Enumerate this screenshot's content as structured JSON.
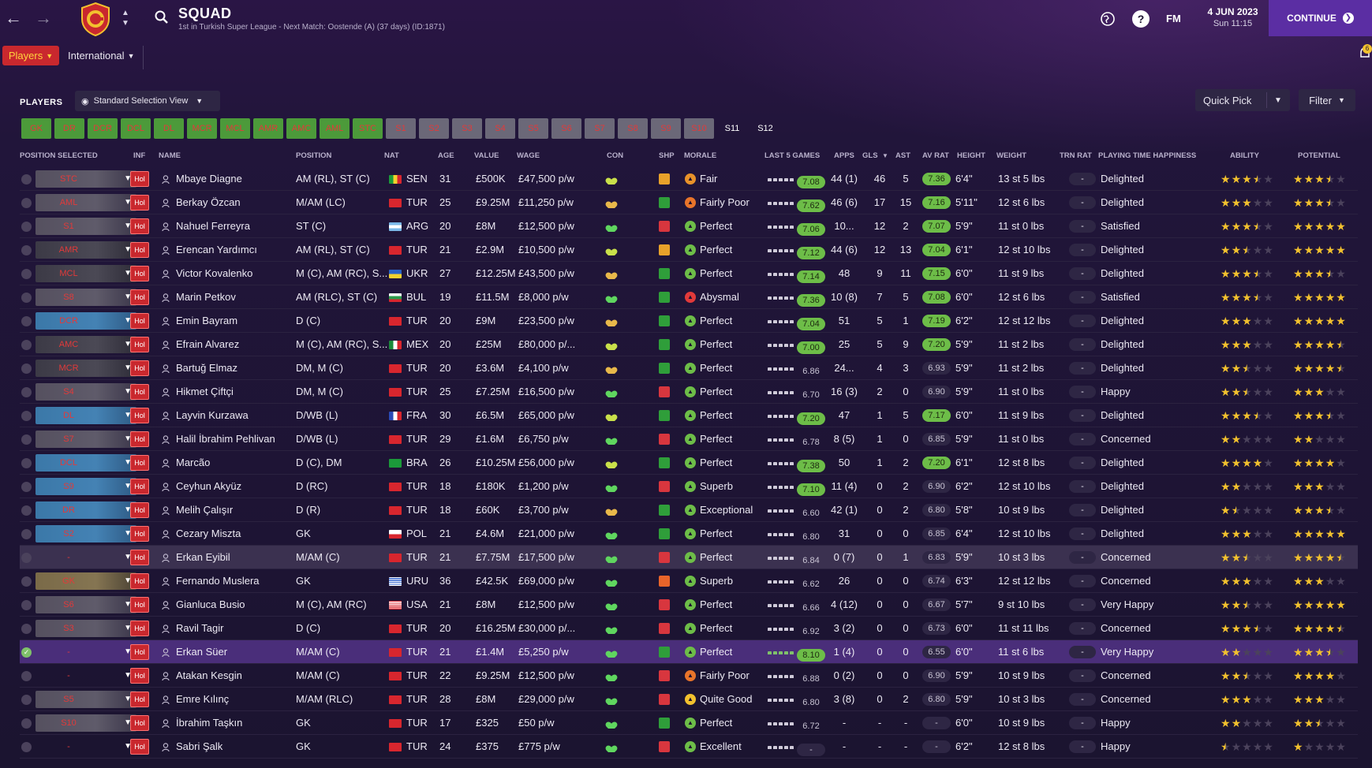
{
  "header": {
    "title": "SQUAD",
    "subtitle": "1st in Turkish Super League - Next Match: Oostende (A) (37 days) (ID:1871)",
    "fm_label": "FM",
    "date_line1": "4 JUN 2023",
    "date_line2": "Sun 11:15",
    "continue_label": "CONTINUE",
    "help_label": "?"
  },
  "subnav": {
    "players_label": "Players",
    "international_label": "International",
    "notif_count": "6"
  },
  "panel": {
    "players_label": "PLAYERS",
    "view_label": "Standard Selection View",
    "quickpick_label": "Quick Pick",
    "filter_label": "Filter"
  },
  "chips": [
    "GK",
    "DR",
    "DCR",
    "DCL",
    "DL",
    "MCR",
    "MCL",
    "AMR",
    "AMC",
    "AML",
    "STC",
    "S1",
    "S2",
    "S3",
    "S4",
    "S5",
    "S6",
    "S7",
    "S8",
    "S9",
    "S10",
    "S11",
    "S12"
  ],
  "columns": {
    "position_selected": "POSITION SELECTED",
    "inf": "INF",
    "name": "NAME",
    "position": "POSITION",
    "nat": "NAT",
    "age": "AGE",
    "value": "VALUE",
    "wage": "WAGE",
    "con": "CON",
    "shp": "SHP",
    "morale": "MORALE",
    "last5": "LAST 5 GAMES",
    "apps": "APPS",
    "gls": "GLS",
    "ast": "AST",
    "avrat": "AV RAT",
    "height": "HEIGHT",
    "weight": "WEIGHT",
    "trn": "TRN RAT",
    "pth": "PLAYING TIME HAPPINESS",
    "ability": "ABILITY",
    "potential": "POTENTIAL"
  },
  "colors": {
    "accent_purple": "#5b2ea3",
    "red": "#c9282e",
    "green_rating": "#6dbd48",
    "star": "#f2c12e"
  },
  "players": [
    {
      "sel": "STC",
      "selType": "att",
      "inf": "Hol",
      "name": "Mbaye Diagne",
      "position": "AM (RL), ST (C)",
      "flag": "SEN",
      "nat": "SEN",
      "age": "31",
      "value": "£500K",
      "wage": "£47,500 p/w",
      "con": "yellow-heart",
      "shp": "orange",
      "morale": "Fair",
      "moraleColor": "#e8922a",
      "l5": "7.08",
      "l5c": "g",
      "apps": "44 (1)",
      "gls": "46",
      "ast": "5",
      "av": "7.36",
      "avc": "g",
      "height": "6'4\"",
      "weight": "13 st 5 lbs",
      "trn": "-",
      "pth": "Delighted",
      "ab": 3.5,
      "pot": 3.5,
      "row": ""
    },
    {
      "sel": "AML",
      "selType": "att",
      "inf": "Hol",
      "name": "Berkay Özcan",
      "position": "M/AM (LC)",
      "flag": "TUR",
      "nat": "TUR",
      "age": "25",
      "value": "£9.25M",
      "wage": "£11,250 p/w",
      "con": "gold-heart",
      "shp": "green",
      "morale": "Fairly Poor",
      "moraleColor": "#e8742a",
      "l5": "7.62",
      "l5c": "g",
      "apps": "46 (6)",
      "gls": "17",
      "ast": "15",
      "av": "7.16",
      "avc": "g",
      "height": "5'11\"",
      "weight": "12 st 6 lbs",
      "trn": "-",
      "pth": "Delighted",
      "ab": 3,
      "pot": 3.5,
      "row": ""
    },
    {
      "sel": "S1",
      "selType": "att",
      "inf": "Hol",
      "name": "Nahuel Ferreyra",
      "position": "ST (C)",
      "flag": "ARG",
      "nat": "ARG",
      "age": "20",
      "value": "£8M",
      "wage": "£12,500 p/w",
      "con": "green-heart",
      "shp": "red",
      "morale": "Perfect",
      "moraleColor": "#6dbd48",
      "l5": "7.06",
      "l5c": "g",
      "apps": "10...",
      "gls": "12",
      "ast": "2",
      "av": "7.07",
      "avc": "g",
      "height": "5'9\"",
      "weight": "11 st 0 lbs",
      "trn": "-",
      "pth": "Satisfied",
      "ab": 3.5,
      "pot": 5,
      "row": ""
    },
    {
      "sel": "AMR",
      "selType": "mid",
      "inf": "Hol",
      "name": "Erencan Yardımcı",
      "position": "AM (RL), ST (C)",
      "flag": "TUR",
      "nat": "TUR",
      "age": "21",
      "value": "£2.9M",
      "wage": "£10,500 p/w",
      "con": "yellow-heart",
      "shp": "orange",
      "morale": "Perfect",
      "moraleColor": "#6dbd48",
      "l5": "7.12",
      "l5c": "g",
      "apps": "44 (6)",
      "gls": "12",
      "ast": "13",
      "av": "7.04",
      "avc": "g",
      "height": "6'1\"",
      "weight": "12 st 10 lbs",
      "trn": "-",
      "pth": "Delighted",
      "ab": 2.5,
      "pot": 5,
      "row": ""
    },
    {
      "sel": "MCL",
      "selType": "mid",
      "inf": "Hol",
      "name": "Victor Kovalenko",
      "position": "M (C), AM (RC), S...",
      "flag": "UKR",
      "nat": "UKR",
      "age": "27",
      "value": "£12.25M",
      "wage": "£43,500 p/w",
      "con": "gold-heart",
      "shp": "green",
      "morale": "Perfect",
      "moraleColor": "#6dbd48",
      "l5": "7.14",
      "l5c": "g",
      "apps": "48",
      "gls": "9",
      "ast": "11",
      "av": "7.15",
      "avc": "g",
      "height": "6'0\"",
      "weight": "11 st 9 lbs",
      "trn": "-",
      "pth": "Delighted",
      "ab": 3.5,
      "pot": 3.5,
      "row": ""
    },
    {
      "sel": "S8",
      "selType": "att",
      "inf": "Hol",
      "name": "Marin Petkov",
      "position": "AM (RLC), ST (C)",
      "flag": "BUL",
      "nat": "BUL",
      "age": "19",
      "value": "£11.5M",
      "wage": "£8,000 p/w",
      "con": "green-heart",
      "shp": "green",
      "morale": "Abysmal",
      "moraleColor": "#e23a3a",
      "l5": "7.36",
      "l5c": "g",
      "apps": "10 (8)",
      "gls": "7",
      "ast": "5",
      "av": "7.08",
      "avc": "g",
      "height": "6'0\"",
      "weight": "12 st 6 lbs",
      "trn": "-",
      "pth": "Satisfied",
      "ab": 3.5,
      "pot": 5,
      "row": ""
    },
    {
      "sel": "DCR",
      "selType": "def",
      "inf": "Hol",
      "name": "Emin Bayram",
      "position": "D (C)",
      "flag": "TUR",
      "nat": "TUR",
      "age": "20",
      "value": "£9M",
      "wage": "£23,500 p/w",
      "con": "gold-heart",
      "shp": "green",
      "morale": "Perfect",
      "moraleColor": "#6dbd48",
      "l5": "7.04",
      "l5c": "g",
      "apps": "51",
      "gls": "5",
      "ast": "1",
      "av": "7.19",
      "avc": "g",
      "height": "6'2\"",
      "weight": "12 st 12 lbs",
      "trn": "-",
      "pth": "Delighted",
      "ab": 3,
      "pot": 5,
      "row": ""
    },
    {
      "sel": "AMC",
      "selType": "mid",
      "inf": "Hol",
      "name": "Efrain Alvarez",
      "position": "M (C), AM (RC), S...",
      "flag": "MEX",
      "nat": "MEX",
      "age": "20",
      "value": "£25M",
      "wage": "£80,000 p/...",
      "con": "yellow-heart",
      "shp": "green",
      "morale": "Perfect",
      "moraleColor": "#6dbd48",
      "l5": "7.00",
      "l5c": "g",
      "apps": "25",
      "gls": "5",
      "ast": "9",
      "av": "7.20",
      "avc": "g",
      "height": "5'9\"",
      "weight": "11 st 2 lbs",
      "trn": "-",
      "pth": "Delighted",
      "ab": 3,
      "pot": 4.5,
      "row": ""
    },
    {
      "sel": "MCR",
      "selType": "mid",
      "inf": "Hol",
      "name": "Bartuğ Elmaz",
      "position": "DM, M (C)",
      "flag": "TUR",
      "nat": "TUR",
      "age": "20",
      "value": "£3.6M",
      "wage": "£4,100 p/w",
      "con": "gold-heart",
      "shp": "green",
      "morale": "Perfect",
      "moraleColor": "#6dbd48",
      "l5": "6.86",
      "l5c": "n",
      "apps": "24...",
      "gls": "4",
      "ast": "3",
      "av": "6.93",
      "avc": "n",
      "height": "5'9\"",
      "weight": "11 st 2 lbs",
      "trn": "-",
      "pth": "Delighted",
      "ab": 2.5,
      "pot": 4.5,
      "row": ""
    },
    {
      "sel": "S4",
      "selType": "att",
      "inf": "Hol",
      "name": "Hikmet Çiftçi",
      "position": "DM, M (C)",
      "flag": "TUR",
      "nat": "TUR",
      "age": "25",
      "value": "£7.25M",
      "wage": "£16,500 p/w",
      "con": "green-heart",
      "shp": "red",
      "morale": "Perfect",
      "moraleColor": "#6dbd48",
      "l5": "6.70",
      "l5c": "n",
      "apps": "16 (3)",
      "gls": "2",
      "ast": "0",
      "av": "6.90",
      "avc": "n",
      "height": "5'9\"",
      "weight": "11 st 0 lbs",
      "trn": "-",
      "pth": "Happy",
      "ab": 2.5,
      "pot": 3,
      "row": ""
    },
    {
      "sel": "DL",
      "selType": "def",
      "inf": "Hol",
      "name": "Layvin Kurzawa",
      "position": "D/WB (L)",
      "flag": "FRA",
      "nat": "FRA",
      "age": "30",
      "value": "£6.5M",
      "wage": "£65,000 p/w",
      "con": "yellow-heart",
      "shp": "green",
      "morale": "Perfect",
      "moraleColor": "#6dbd48",
      "l5": "7.20",
      "l5c": "g",
      "apps": "47",
      "gls": "1",
      "ast": "5",
      "av": "7.17",
      "avc": "g",
      "height": "6'0\"",
      "weight": "11 st 9 lbs",
      "trn": "-",
      "pth": "Delighted",
      "ab": 3.5,
      "pot": 3.5,
      "row": ""
    },
    {
      "sel": "S7",
      "selType": "att",
      "inf": "Hol",
      "name": "Halil İbrahim Pehlivan",
      "position": "D/WB (L)",
      "flag": "TUR",
      "nat": "TUR",
      "age": "29",
      "value": "£1.6M",
      "wage": "£6,750 p/w",
      "con": "green-heart",
      "shp": "red",
      "morale": "Perfect",
      "moraleColor": "#6dbd48",
      "l5": "6.78",
      "l5c": "n",
      "apps": "8 (5)",
      "gls": "1",
      "ast": "0",
      "av": "6.85",
      "avc": "n",
      "height": "5'9\"",
      "weight": "11 st 0 lbs",
      "trn": "-",
      "pth": "Concerned",
      "ab": 2,
      "pot": 2,
      "row": ""
    },
    {
      "sel": "DCL",
      "selType": "def",
      "inf": "Hol",
      "name": "Marcão",
      "position": "D (C), DM",
      "flag": "BRA",
      "nat": "BRA",
      "age": "26",
      "value": "£10.25M",
      "wage": "£56,000 p/w",
      "con": "yellow-heart",
      "shp": "green",
      "morale": "Perfect",
      "moraleColor": "#6dbd48",
      "l5": "7.38",
      "l5c": "g",
      "apps": "50",
      "gls": "1",
      "ast": "2",
      "av": "7.20",
      "avc": "g",
      "height": "6'1\"",
      "weight": "12 st 8 lbs",
      "trn": "-",
      "pth": "Delighted",
      "ab": 4,
      "pot": 4,
      "row": ""
    },
    {
      "sel": "S9",
      "selType": "def",
      "inf": "Hol",
      "name": "Ceyhun Akyüz",
      "position": "D (RC)",
      "flag": "TUR",
      "nat": "TUR",
      "age": "18",
      "value": "£180K",
      "wage": "£1,200 p/w",
      "con": "green-heart",
      "shp": "red",
      "morale": "Superb",
      "moraleColor": "#6dbd48",
      "l5": "7.10",
      "l5c": "g",
      "apps": "11 (4)",
      "gls": "0",
      "ast": "2",
      "av": "6.90",
      "avc": "n",
      "height": "6'2\"",
      "weight": "12 st 10 lbs",
      "trn": "-",
      "pth": "Delighted",
      "ab": 2,
      "pot": 3,
      "row": ""
    },
    {
      "sel": "DR",
      "selType": "def",
      "inf": "Hol",
      "name": "Melih Çalışır",
      "position": "D (R)",
      "flag": "TUR",
      "nat": "TUR",
      "age": "18",
      "value": "£60K",
      "wage": "£3,700 p/w",
      "con": "gold-heart",
      "shp": "green",
      "morale": "Exceptional",
      "moraleColor": "#6dbd48",
      "l5": "6.60",
      "l5c": "n",
      "apps": "42 (1)",
      "gls": "0",
      "ast": "2",
      "av": "6.80",
      "avc": "n",
      "height": "5'8\"",
      "weight": "10 st 9 lbs",
      "trn": "-",
      "pth": "Delighted",
      "ab": 1.5,
      "pot": 3.5,
      "row": ""
    },
    {
      "sel": "S2",
      "selType": "def",
      "inf": "Hol",
      "name": "Cezary Miszta",
      "position": "GK",
      "flag": "POL",
      "nat": "POL",
      "age": "21",
      "value": "£4.6M",
      "wage": "£21,000 p/w",
      "con": "green-heart",
      "shp": "green",
      "morale": "Perfect",
      "moraleColor": "#6dbd48",
      "l5": "6.80",
      "l5c": "n",
      "apps": "31",
      "gls": "0",
      "ast": "0",
      "av": "6.85",
      "avc": "n",
      "height": "6'4\"",
      "weight": "12 st 10 lbs",
      "trn": "-",
      "pth": "Delighted",
      "ab": 3,
      "pot": 5,
      "row": ""
    },
    {
      "sel": "-",
      "selType": "none",
      "inf": "Hol",
      "name": "Erkan Eyibil",
      "position": "M/AM (C)",
      "flag": "TUR",
      "nat": "TUR",
      "age": "21",
      "value": "£7.75M",
      "wage": "£17,500 p/w",
      "con": "green-heart",
      "shp": "red",
      "morale": "Perfect",
      "moraleColor": "#6dbd48",
      "l5": "6.84",
      "l5c": "n",
      "apps": "0 (7)",
      "gls": "0",
      "ast": "1",
      "av": "6.83",
      "avc": "n",
      "height": "5'9\"",
      "weight": "10 st 3 lbs",
      "trn": "-",
      "pth": "Concerned",
      "ab": 2.5,
      "pot": 4.5,
      "row": "hl"
    },
    {
      "sel": "GK",
      "selType": "gk",
      "inf": "Hol",
      "name": "Fernando Muslera",
      "position": "GK",
      "flag": "URU",
      "nat": "URU",
      "age": "36",
      "value": "£42.5K",
      "wage": "£69,000 p/w",
      "con": "green-heart",
      "shp": "orange-red",
      "morale": "Superb",
      "moraleColor": "#6dbd48",
      "l5": "6.62",
      "l5c": "n",
      "apps": "26",
      "gls": "0",
      "ast": "0",
      "av": "6.74",
      "avc": "n",
      "height": "6'3\"",
      "weight": "12 st 12 lbs",
      "trn": "-",
      "pth": "Concerned",
      "ab": 3,
      "pot": 3,
      "row": ""
    },
    {
      "sel": "S6",
      "selType": "att",
      "inf": "Hol",
      "name": "Gianluca Busio",
      "position": "M (C), AM (RC)",
      "flag": "USA",
      "nat": "USA",
      "age": "21",
      "value": "£8M",
      "wage": "£12,500 p/w",
      "con": "green-heart",
      "shp": "red",
      "morale": "Perfect",
      "moraleColor": "#6dbd48",
      "l5": "6.66",
      "l5c": "n",
      "apps": "4 (12)",
      "gls": "0",
      "ast": "0",
      "av": "6.67",
      "avc": "n",
      "height": "5'7\"",
      "weight": "9 st 10 lbs",
      "trn": "-",
      "pth": "Very Happy",
      "ab": 2.5,
      "pot": 5,
      "row": ""
    },
    {
      "sel": "S3",
      "selType": "att",
      "inf": "Hol",
      "name": "Ravil Tagir",
      "position": "D (C)",
      "flag": "TUR",
      "nat": "TUR",
      "age": "20",
      "value": "£16.25M",
      "wage": "£30,000 p/...",
      "con": "green-heart",
      "shp": "red",
      "morale": "Perfect",
      "moraleColor": "#6dbd48",
      "l5": "6.92",
      "l5c": "n",
      "apps": "3 (2)",
      "gls": "0",
      "ast": "0",
      "av": "6.73",
      "avc": "n",
      "height": "6'0\"",
      "weight": "11 st 11 lbs",
      "trn": "-",
      "pth": "Concerned",
      "ab": 3.5,
      "pot": 4.5,
      "row": ""
    },
    {
      "sel": "-",
      "selType": "none",
      "inf": "Hol",
      "name": "Erkan Süer",
      "position": "M/AM (C)",
      "flag": "TUR",
      "nat": "TUR",
      "age": "21",
      "value": "£1.4M",
      "wage": "£5,250 p/w",
      "con": "green-heart",
      "shp": "green",
      "morale": "Perfect",
      "moraleColor": "#6dbd48",
      "l5": "8.10",
      "l5c": "g",
      "apps": "1 (4)",
      "gls": "0",
      "ast": "0",
      "av": "6.55",
      "avc": "n",
      "height": "6'0\"",
      "weight": "11 st 6 lbs",
      "trn": "-",
      "pth": "Very Happy",
      "ab": 2,
      "pot": 3.5,
      "row": "sel"
    },
    {
      "sel": "-",
      "selType": "none",
      "inf": "Hol",
      "name": "Atakan Kesgin",
      "position": "M/AM (C)",
      "flag": "TUR",
      "nat": "TUR",
      "age": "22",
      "value": "£9.25M",
      "wage": "£12,500 p/w",
      "con": "green-heart",
      "shp": "red",
      "morale": "Fairly Poor",
      "moraleColor": "#e8742a",
      "l5": "6.88",
      "l5c": "n",
      "apps": "0 (2)",
      "gls": "0",
      "ast": "0",
      "av": "6.90",
      "avc": "n",
      "height": "5'9\"",
      "weight": "10 st 9 lbs",
      "trn": "-",
      "pth": "Concerned",
      "ab": 2.5,
      "pot": 4,
      "row": ""
    },
    {
      "sel": "S5",
      "selType": "att",
      "inf": "Hol",
      "name": "Emre Kılınç",
      "position": "M/AM (RLC)",
      "flag": "TUR",
      "nat": "TUR",
      "age": "28",
      "value": "£8M",
      "wage": "£29,000 p/w",
      "con": "green-heart",
      "shp": "red",
      "morale": "Quite Good",
      "moraleColor": "#f2c12e",
      "l5": "6.80",
      "l5c": "n",
      "apps": "3 (8)",
      "gls": "0",
      "ast": "2",
      "av": "6.80",
      "avc": "n",
      "height": "5'9\"",
      "weight": "10 st 3 lbs",
      "trn": "-",
      "pth": "Concerned",
      "ab": 3,
      "pot": 3,
      "row": ""
    },
    {
      "sel": "S10",
      "selType": "att",
      "inf": "Hol",
      "name": "İbrahim Taşkın",
      "position": "GK",
      "flag": "TUR",
      "nat": "TUR",
      "age": "17",
      "value": "£325",
      "wage": "£50 p/w",
      "con": "green-heart",
      "shp": "green",
      "morale": "Perfect",
      "moraleColor": "#6dbd48",
      "l5": "6.72",
      "l5c": "n",
      "apps": "-",
      "gls": "-",
      "ast": "-",
      "av": "-",
      "avc": "n",
      "height": "6'0\"",
      "weight": "10 st 9 lbs",
      "trn": "-",
      "pth": "Happy",
      "ab": 2,
      "pot": 2.5,
      "row": ""
    },
    {
      "sel": "-",
      "selType": "none",
      "inf": "Hol",
      "name": "Sabri Şalk",
      "position": "GK",
      "flag": "TUR",
      "nat": "TUR",
      "age": "24",
      "value": "£375",
      "wage": "£775 p/w",
      "con": "green-heart",
      "shp": "red",
      "morale": "Excellent",
      "moraleColor": "#6dbd48",
      "l5": "-",
      "l5c": "d",
      "apps": "-",
      "gls": "-",
      "ast": "-",
      "av": "-",
      "avc": "n",
      "height": "6'2\"",
      "weight": "12 st 8 lbs",
      "trn": "-",
      "pth": "Happy",
      "ab": 0.5,
      "pot": 1,
      "row": ""
    }
  ]
}
